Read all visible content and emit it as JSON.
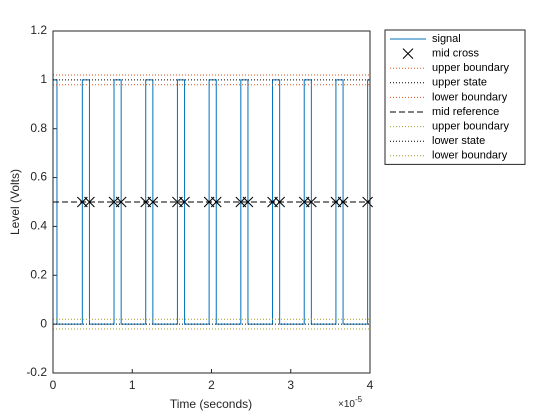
{
  "chart_data": {
    "type": "line",
    "xlabel": "Time (seconds)",
    "ylabel": "Level (Volts)",
    "x_exponent": {
      "base": "×10",
      "power": "-5"
    },
    "xlim": [
      0,
      4
    ],
    "xticks": [
      0,
      1,
      2,
      3,
      4
    ],
    "ylim": [
      -0.2,
      1.2
    ],
    "yticks": [
      -0.2,
      0,
      0.2,
      0.4,
      0.6,
      0.8,
      1,
      1.2
    ],
    "legend": "outside-top-right",
    "series": [
      {
        "name": "signal",
        "color": "#0072BD",
        "style": "solid",
        "x": [
          0,
          0.05,
          0.05,
          0.37,
          0.37,
          0.46,
          0.46,
          0.77,
          0.77,
          0.86,
          0.86,
          1.17,
          1.17,
          1.26,
          1.26,
          1.57,
          1.57,
          1.66,
          1.66,
          1.97,
          1.97,
          2.06,
          2.06,
          2.37,
          2.37,
          2.46,
          2.46,
          2.77,
          2.77,
          2.86,
          2.86,
          3.17,
          3.17,
          3.26,
          3.26,
          3.57,
          3.57,
          3.66,
          3.66,
          3.97,
          3.97,
          4
        ],
        "values": [
          1,
          1,
          0,
          0,
          1,
          1,
          0,
          0,
          1,
          1,
          0,
          0,
          1,
          1,
          0,
          0,
          1,
          1,
          0,
          0,
          1,
          1,
          0,
          0,
          1,
          1,
          0,
          0,
          1,
          1,
          0,
          0,
          1,
          1,
          0,
          0,
          1,
          1,
          0,
          0,
          1,
          1
        ]
      },
      {
        "name": "mid cross",
        "color": "#000000",
        "style": "none",
        "marker": "x",
        "x": [
          0.37,
          0.46,
          0.77,
          0.86,
          1.17,
          1.26,
          1.57,
          1.66,
          1.97,
          2.06,
          2.37,
          2.46,
          2.77,
          2.86,
          3.17,
          3.26,
          3.57,
          3.66,
          3.97
        ],
        "values": [
          0.5,
          0.5,
          0.5,
          0.5,
          0.5,
          0.5,
          0.5,
          0.5,
          0.5,
          0.5,
          0.5,
          0.5,
          0.5,
          0.5,
          0.5,
          0.5,
          0.5,
          0.5,
          0.5
        ]
      },
      {
        "name": "upper boundary",
        "color": "#D95319",
        "style": "dotted",
        "x": [
          0,
          4
        ],
        "values": [
          1.02,
          1.02
        ]
      },
      {
        "name": "upper state",
        "color": "#000000",
        "style": "dotted",
        "x": [
          0,
          4
        ],
        "values": [
          1,
          1
        ]
      },
      {
        "name": "lower boundary",
        "color": "#D95319",
        "style": "dotted",
        "x": [
          0,
          4
        ],
        "values": [
          0.98,
          0.98
        ]
      },
      {
        "name": "mid reference",
        "color": "#000000",
        "style": "dashed",
        "x": [
          0,
          4
        ],
        "values": [
          0.5,
          0.5
        ]
      },
      {
        "name": "upper boundary",
        "color": "#A2A02A",
        "style": "dotted",
        "x": [
          0,
          4
        ],
        "values": [
          0.02,
          0.02
        ]
      },
      {
        "name": "lower state",
        "color": "#000000",
        "style": "dotted",
        "x": [
          0,
          4
        ],
        "values": [
          0,
          0
        ]
      },
      {
        "name": "lower boundary",
        "color": "#A2A02A",
        "style": "dotted",
        "x": [
          0,
          4
        ],
        "values": [
          -0.02,
          -0.02
        ]
      }
    ]
  }
}
